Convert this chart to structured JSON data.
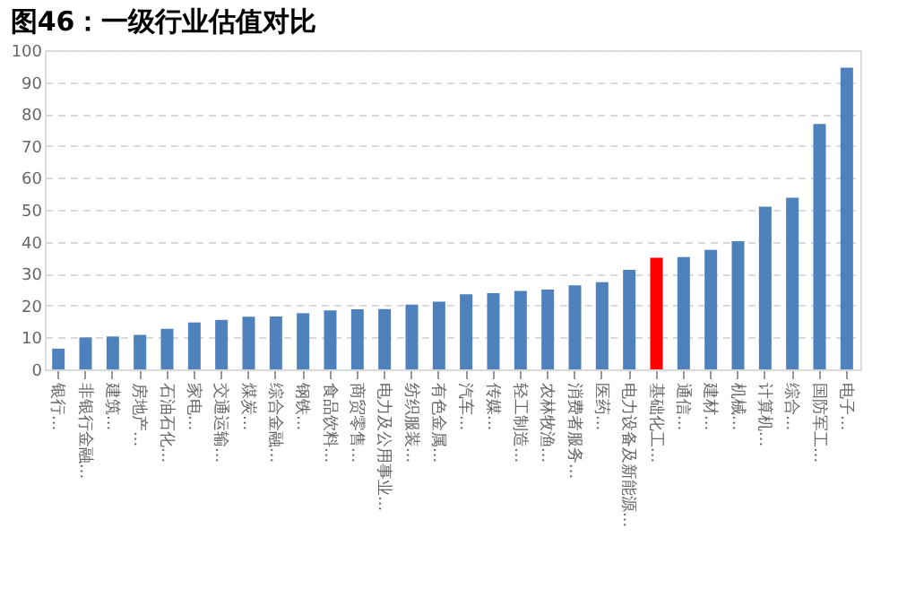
{
  "chart_data": {
    "type": "bar",
    "title": "图46：一级行业估值对比",
    "categories": [
      "银行...",
      "非银行金融...",
      "建筑...",
      "房地产...",
      "石油石化...",
      "家电...",
      "交通运输...",
      "煤炭...",
      "综合金融...",
      "钢铁...",
      "食品饮料...",
      "商贸零售...",
      "电力及公用事业...",
      "纺织服装...",
      "有色金属...",
      "汽车...",
      "传媒...",
      "轻工制造...",
      "农林牧渔...",
      "消费者服务...",
      "医药...",
      "电力设备及新能源...",
      "基础化工...",
      "通信...",
      "建材...",
      "机械...",
      "计算机...",
      "综合...",
      "国防军工...",
      "电子..."
    ],
    "values": [
      6.5,
      10,
      10.3,
      10.8,
      12.7,
      14.7,
      15.5,
      16.5,
      16.6,
      17.6,
      18.5,
      18.8,
      18.9,
      20.3,
      21.2,
      23.5,
      23.9,
      24.6,
      25,
      26.3,
      27.3,
      31.2,
      35,
      35.2,
      37.4,
      40.2,
      51,
      53.8,
      76.9,
      94.5
    ],
    "colors": [
      "#4f81bd",
      "#4f81bd",
      "#4f81bd",
      "#4f81bd",
      "#4f81bd",
      "#4f81bd",
      "#4f81bd",
      "#4f81bd",
      "#4f81bd",
      "#4f81bd",
      "#4f81bd",
      "#4f81bd",
      "#4f81bd",
      "#4f81bd",
      "#4f81bd",
      "#4f81bd",
      "#4f81bd",
      "#4f81bd",
      "#4f81bd",
      "#4f81bd",
      "#4f81bd",
      "#4f81bd",
      "#ff0000",
      "#4f81bd",
      "#4f81bd",
      "#4f81bd",
      "#4f81bd",
      "#4f81bd",
      "#4f81bd",
      "#4f81bd"
    ],
    "ylim": [
      0,
      100
    ],
    "yticks": [
      0,
      10,
      20,
      30,
      40,
      50,
      60,
      70,
      80,
      90,
      100
    ],
    "grid": "y"
  }
}
